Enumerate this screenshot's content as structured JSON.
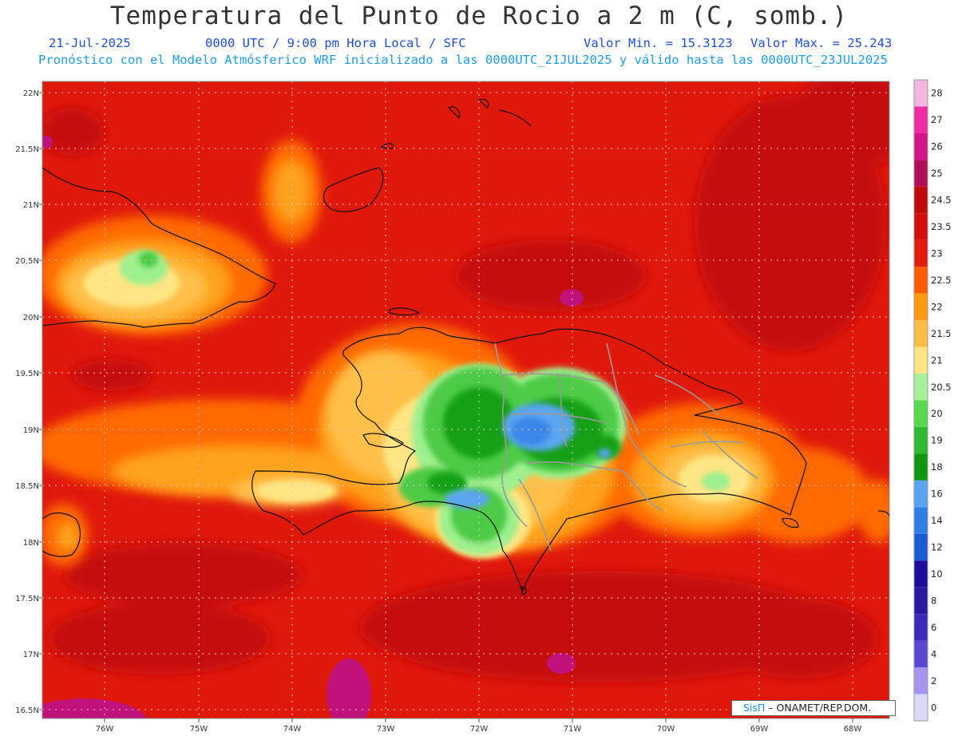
{
  "header": {
    "title": "Temperatura del Punto de Rocio a 2 m (C, somb.)",
    "date": "21-Jul-2025",
    "time_info": "0000 UTC / 9:00 pm Hora Local / SFC",
    "min_label": "Valor Min. = 15.3123",
    "max_label": "Valor Max. = 25.243",
    "model_info": "Pronóstico con el Modelo Atmósferico WRF inicializado a las 0000UTC_21JUL2025 y válido hasta las  0000UTC_23JUL2025"
  },
  "map": {
    "lat_labels": [
      "22N",
      "21.5N",
      "21N",
      "20.5N",
      "20N",
      "19.5N",
      "19N",
      "18.5N",
      "18N",
      "17.5N",
      "17N",
      "16.5N"
    ],
    "lon_labels": [
      "76W",
      "75W",
      "74W",
      "73W",
      "72W",
      "71W",
      "70W",
      "69W",
      "68W"
    ],
    "colors": {
      "ocean": "#e0180c",
      "warm": "#c60c0a",
      "orange": "#ff6a00",
      "light_orange": "#ffa21c",
      "yellow_orange": "#ffc04a",
      "yellow": "#ffe584",
      "light_green": "#9ef08e",
      "green": "#4ecb46",
      "dark_green": "#18a018",
      "light_blue": "#5aa6f0",
      "blue": "#3a86e8",
      "magenta": "#c0127a",
      "coastline": "#111111",
      "borders": "#9a9a9a"
    }
  },
  "legend": {
    "labels": [
      "28",
      "27",
      "26",
      "25",
      "24.5",
      "23.5",
      "23",
      "22.5",
      "22",
      "21.5",
      "21",
      "20.5",
      "20",
      "19",
      "18",
      "16",
      "14",
      "12",
      "10",
      "8",
      "6",
      "4",
      "2",
      "0"
    ],
    "colors": [
      "#f4b6e0",
      "#ee2aa4",
      "#d41688",
      "#b00e58",
      "#c00c08",
      "#d40c0a",
      "#e41a0a",
      "#ff5a00",
      "#ff9a10",
      "#ffbc44",
      "#ffe484",
      "#a6f098",
      "#58d84e",
      "#30b830",
      "#10960e",
      "#5aa2f2",
      "#2e7ee6",
      "#1a5cd6",
      "#1a0e9a",
      "#2a1aa2",
      "#3c2ab6",
      "#5a48d0",
      "#a892f0",
      "#d8d8f8"
    ]
  },
  "credit": {
    "brand": "SisΠ",
    "text": " – ONAMET/REP.DOM."
  }
}
